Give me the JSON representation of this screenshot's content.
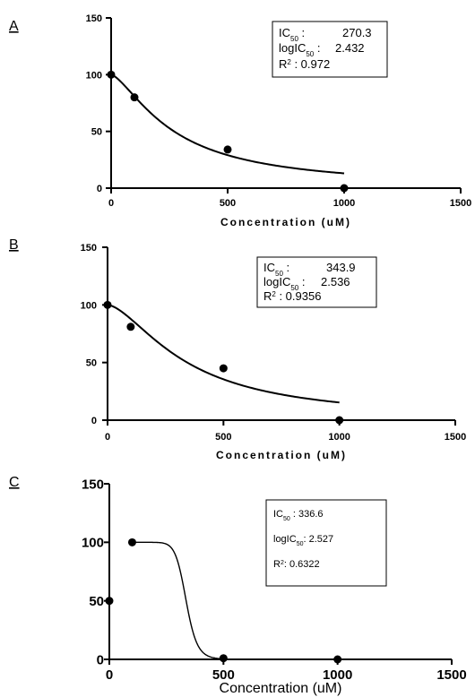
{
  "chart_data": [
    {
      "type": "scatter",
      "panel_label": "A",
      "xlabel": "Concentration (uM)",
      "ylabel": "",
      "xlim": [
        0,
        1500
      ],
      "ylim": [
        0,
        150
      ],
      "x_ticks": [
        "0",
        "500",
        "1000",
        "1500"
      ],
      "y_ticks": [
        "0",
        "50",
        "100",
        "150"
      ],
      "points": [
        {
          "x": 0,
          "y": 100
        },
        {
          "x": 100,
          "y": 80
        },
        {
          "x": 500,
          "y": 34
        },
        {
          "x": 1000,
          "y": 0
        }
      ],
      "fit": {
        "model": "sigmoid",
        "ic50": 270.3,
        "hill": 1.45,
        "x_end": 1000
      },
      "annotation": {
        "ic50_label": "IC",
        "ic50_sub": "50",
        "ic50_sep": " :",
        "ic50_value": "270.3",
        "logic50_label": "logIC",
        "logic50_sub": "50",
        "logic50_sep": " :",
        "logic50_value": "2.432",
        "r2_label": "R",
        "r2_sup": "2",
        "r2_value": " : 0.972"
      },
      "grid": false
    },
    {
      "type": "scatter",
      "panel_label": "B",
      "xlabel": "Concentration (uM)",
      "ylabel": "",
      "xlim": [
        0,
        1500
      ],
      "ylim": [
        0,
        150
      ],
      "x_ticks": [
        "0",
        "500",
        "1000",
        "1500"
      ],
      "y_ticks": [
        "0",
        "50",
        "100",
        "150"
      ],
      "points": [
        {
          "x": 0,
          "y": 100
        },
        {
          "x": 100,
          "y": 81
        },
        {
          "x": 500,
          "y": 45
        },
        {
          "x": 1000,
          "y": 0
        }
      ],
      "fit": {
        "model": "sigmoid",
        "ic50": 343.9,
        "hill": 1.6,
        "x_end": 1000
      },
      "annotation": {
        "ic50_label": "IC",
        "ic50_sub": "50",
        "ic50_sep": " :",
        "ic50_value": "343.9",
        "logic50_label": "logIC",
        "logic50_sub": "50",
        "logic50_sep": " :",
        "logic50_value": "2.536",
        "r2_label": "R",
        "r2_sup": "2",
        "r2_value": " : 0.9356"
      },
      "grid": false
    },
    {
      "type": "scatter",
      "panel_label": "C",
      "xlabel": "Concentration (uM)",
      "ylabel": "",
      "xlim": [
        0,
        1500
      ],
      "ylim": [
        0,
        150
      ],
      "x_ticks": [
        "0",
        "500",
        "1000",
        "1500"
      ],
      "y_ticks": [
        "0",
        "50",
        "100",
        "150"
      ],
      "points": [
        {
          "x": 0,
          "y": 50
        },
        {
          "x": 100,
          "y": 100
        },
        {
          "x": 500,
          "y": 1
        },
        {
          "x": 1000,
          "y": 0
        }
      ],
      "fit": {
        "model": "sigmoid",
        "ic50": 336.6,
        "hill": 14,
        "x_start": 100,
        "x_end": 580
      },
      "annotation": {
        "ic50_label": "IC",
        "ic50_sub": "50",
        "ic50_sep": " :",
        "ic50_value": "336.6",
        "logic50_label": "logIC",
        "logic50_sub": "50",
        "logic50_sep": ":",
        "logic50_value": "2.527",
        "r2_label": "R",
        "r2_sup": "2",
        "r2_value": ": 0.6322"
      },
      "grid": false
    }
  ]
}
